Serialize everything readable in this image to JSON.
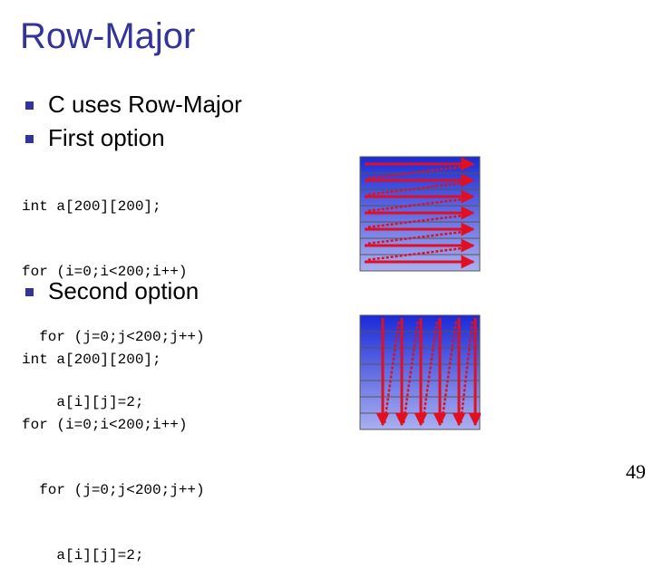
{
  "slide": {
    "title": "Row-Major",
    "bullets": [
      "C uses Row-Major",
      "First option"
    ],
    "code_first": [
      "int a[200][200];",
      "for (i=0;i<200;i++)",
      "  for (j=0;j<200;j++)",
      "    a[i][j]=2;"
    ],
    "second_bullet": "Second option",
    "code_second": [
      "int a[200][200];",
      "for (i=0;i<200;i++)",
      "  for (j=0;j<200;j++)",
      "    a[i][j]=2;"
    ],
    "page_number": "49"
  },
  "figures": {
    "row_traversal": {
      "rows": 7,
      "direction": "row-by-row",
      "arrow_count": 7
    },
    "column_traversal": {
      "rows": 7,
      "direction": "column-by-column",
      "arrow_count": 6
    }
  },
  "colors": {
    "title": "#333399",
    "bullet": "#333399",
    "grid_top": "#1a2ad8",
    "grid_bottom": "#aab0f0",
    "arrow": "#e01020",
    "grid_line": "#555555"
  }
}
